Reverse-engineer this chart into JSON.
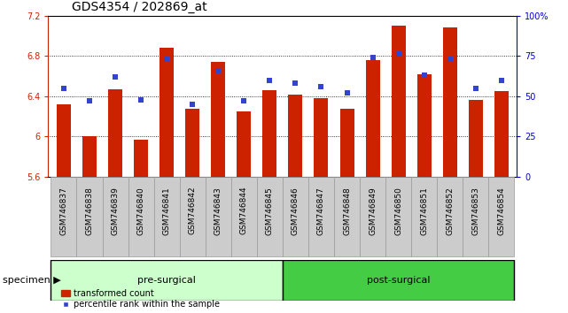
{
  "title": "GDS4354 / 202869_at",
  "categories": [
    "GSM746837",
    "GSM746838",
    "GSM746839",
    "GSM746840",
    "GSM746841",
    "GSM746842",
    "GSM746843",
    "GSM746844",
    "GSM746845",
    "GSM746846",
    "GSM746847",
    "GSM746848",
    "GSM746849",
    "GSM746850",
    "GSM746851",
    "GSM746852",
    "GSM746853",
    "GSM746854"
  ],
  "bar_values": [
    6.32,
    6.0,
    6.47,
    5.97,
    6.88,
    6.28,
    6.74,
    6.25,
    6.46,
    6.42,
    6.38,
    6.28,
    6.76,
    7.1,
    6.62,
    7.08,
    6.36,
    6.45
  ],
  "percentile_values": [
    55,
    47,
    62,
    48,
    73,
    45,
    66,
    47,
    60,
    58,
    56,
    52,
    74,
    76,
    63,
    73,
    55,
    60
  ],
  "ylim_left": [
    5.6,
    7.2
  ],
  "ylim_right": [
    0,
    100
  ],
  "yticks_left": [
    5.6,
    6.0,
    6.4,
    6.8,
    7.2
  ],
  "yticks_right": [
    0,
    25,
    50,
    75,
    100
  ],
  "ytick_labels_right": [
    "0",
    "25",
    "50",
    "75",
    "100%"
  ],
  "bar_color": "#cc2200",
  "dot_color": "#3344cc",
  "pre_surgical_count": 9,
  "post_surgical_count": 9,
  "pre_label": "pre-surgical",
  "post_label": "post-surgical",
  "specimen_label": "specimen",
  "legend_bar_label": "transformed count",
  "legend_dot_label": "percentile rank within the sample",
  "title_fontsize": 10,
  "tick_fontsize": 7,
  "label_fontsize": 8,
  "xtick_fontsize": 6.5,
  "bg_plot": "#ffffff",
  "bg_xtick": "#cccccc",
  "bg_presurg": "#ccffcc",
  "bg_postsurg": "#44cc44",
  "grid_yticks": [
    6.0,
    6.4,
    6.8
  ]
}
